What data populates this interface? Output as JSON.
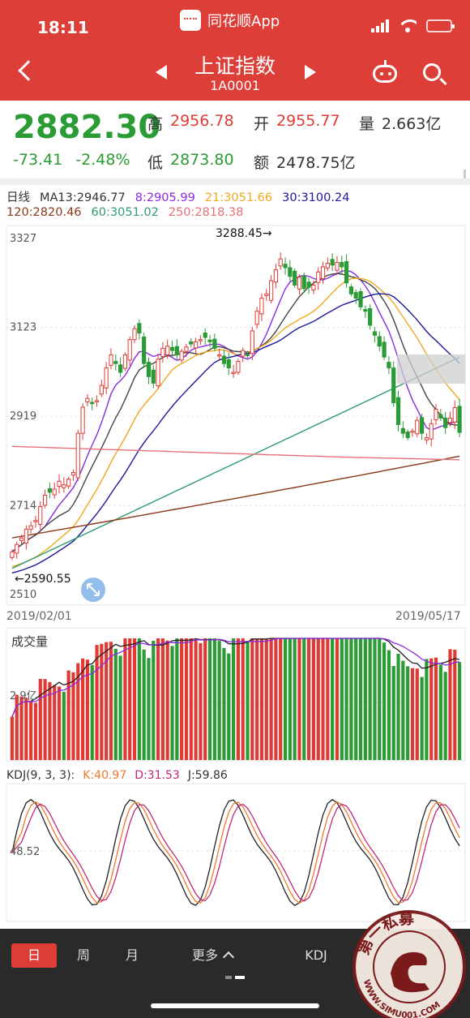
{
  "status_bar": {
    "time": "18:11",
    "app_name": "同花顺App"
  },
  "header": {
    "title": "上证指数",
    "code": "1A0001"
  },
  "quote": {
    "price": "2882.30",
    "change": "-73.41",
    "change_pct": "-2.48%",
    "high_label": "高",
    "high": "2956.78",
    "open_label": "开",
    "open": "2955.77",
    "volume_label": "量",
    "volume": "2.663亿",
    "low_label": "低",
    "low": "2873.80",
    "amount_label": "额",
    "amount": "2478.75亿"
  },
  "ma_legend": {
    "period": "日线",
    "ma13": "MA13:2946.77",
    "ma8": "8:2905.99",
    "ma21": "21:3051.66",
    "ma30": "30:3100.24",
    "ma120": "120:2820.46",
    "ma60": "60:3051.02",
    "ma250": "250:2818.38"
  },
  "colors": {
    "up": "#e03a35",
    "down": "#2a9b35",
    "ma8": "#8a2be2",
    "ma13": "#444444",
    "ma21": "#f0a81e",
    "ma30": "#1a1a9a",
    "ma60": "#2e9b6e",
    "ma120": "#8b3a1a",
    "ma250": "#e8707a"
  },
  "chart_data": [
    {
      "type": "candlestick",
      "title": "",
      "y_ticks": [
        "3327",
        "3123",
        "2919",
        "2714",
        "2510"
      ],
      "ylim": [
        2510,
        3327
      ],
      "annotations": {
        "high": "3288.45→",
        "low": "←2590.55"
      },
      "x_start": "2019/02/01",
      "x_end": "2019/05/17",
      "grid": true
    },
    {
      "type": "bar",
      "title": "成交量",
      "y_tick": "2.9亿"
    },
    {
      "type": "line",
      "title": "KDJ(9, 3, 3):",
      "k": "K:40.97",
      "d": "D:31.53",
      "j": "J:59.86",
      "y_tick": "48.52"
    }
  ],
  "bottom_bar": {
    "tabs": [
      "日",
      "周",
      "月",
      "更多",
      "KDJ"
    ],
    "active": "日"
  },
  "watermark": {
    "text": "第一私募",
    "site": "WWW.SIMU001.COM"
  }
}
